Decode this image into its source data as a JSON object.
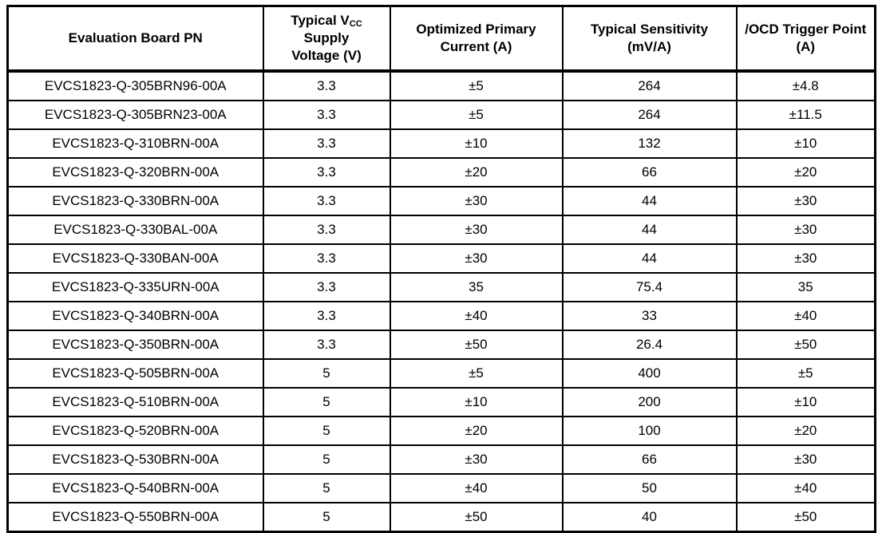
{
  "table": {
    "columns": [
      {
        "label": "Evaluation Board PN"
      },
      {
        "line1_pre": "Typical V",
        "line1_sub": "CC",
        "line2": "Supply",
        "line3": "Voltage (V)"
      },
      {
        "label": "Optimized Primary Current (A)"
      },
      {
        "label": "Typical Sensitivity (mV/A)"
      },
      {
        "label": "/OCD Trigger Point (A)"
      }
    ],
    "rows": [
      [
        "EVCS1823-Q-305BRN96-00A",
        "3.3",
        "±5",
        "264",
        "±4.8"
      ],
      [
        "EVCS1823-Q-305BRN23-00A",
        "3.3",
        "±5",
        "264",
        "±11.5"
      ],
      [
        "EVCS1823-Q-310BRN-00A",
        "3.3",
        "±10",
        "132",
        "±10"
      ],
      [
        "EVCS1823-Q-320BRN-00A",
        "3.3",
        "±20",
        "66",
        "±20"
      ],
      [
        "EVCS1823-Q-330BRN-00A",
        "3.3",
        "±30",
        "44",
        "±30"
      ],
      [
        "EVCS1823-Q-330BAL-00A",
        "3.3",
        "±30",
        "44",
        "±30"
      ],
      [
        "EVCS1823-Q-330BAN-00A",
        "3.3",
        "±30",
        "44",
        "±30"
      ],
      [
        "EVCS1823-Q-335URN-00A",
        "3.3",
        "35",
        "75.4",
        "35"
      ],
      [
        "EVCS1823-Q-340BRN-00A",
        "3.3",
        "±40",
        "33",
        "±40"
      ],
      [
        "EVCS1823-Q-350BRN-00A",
        "3.3",
        "±50",
        "26.4",
        "±50"
      ],
      [
        "EVCS1823-Q-505BRN-00A",
        "5",
        "±5",
        "400",
        "±5"
      ],
      [
        "EVCS1823-Q-510BRN-00A",
        "5",
        "±10",
        "200",
        "±10"
      ],
      [
        "EVCS1823-Q-520BRN-00A",
        "5",
        "±20",
        "100",
        "±20"
      ],
      [
        "EVCS1823-Q-530BRN-00A",
        "5",
        "±30",
        "66",
        "±30"
      ],
      [
        "EVCS1823-Q-540BRN-00A",
        "5",
        "±40",
        "50",
        "±40"
      ],
      [
        "EVCS1823-Q-550BRN-00A",
        "5",
        "±50",
        "40",
        "±50"
      ]
    ]
  },
  "colors": {
    "border": "#000000",
    "text": "#000000",
    "background": "#ffffff"
  }
}
